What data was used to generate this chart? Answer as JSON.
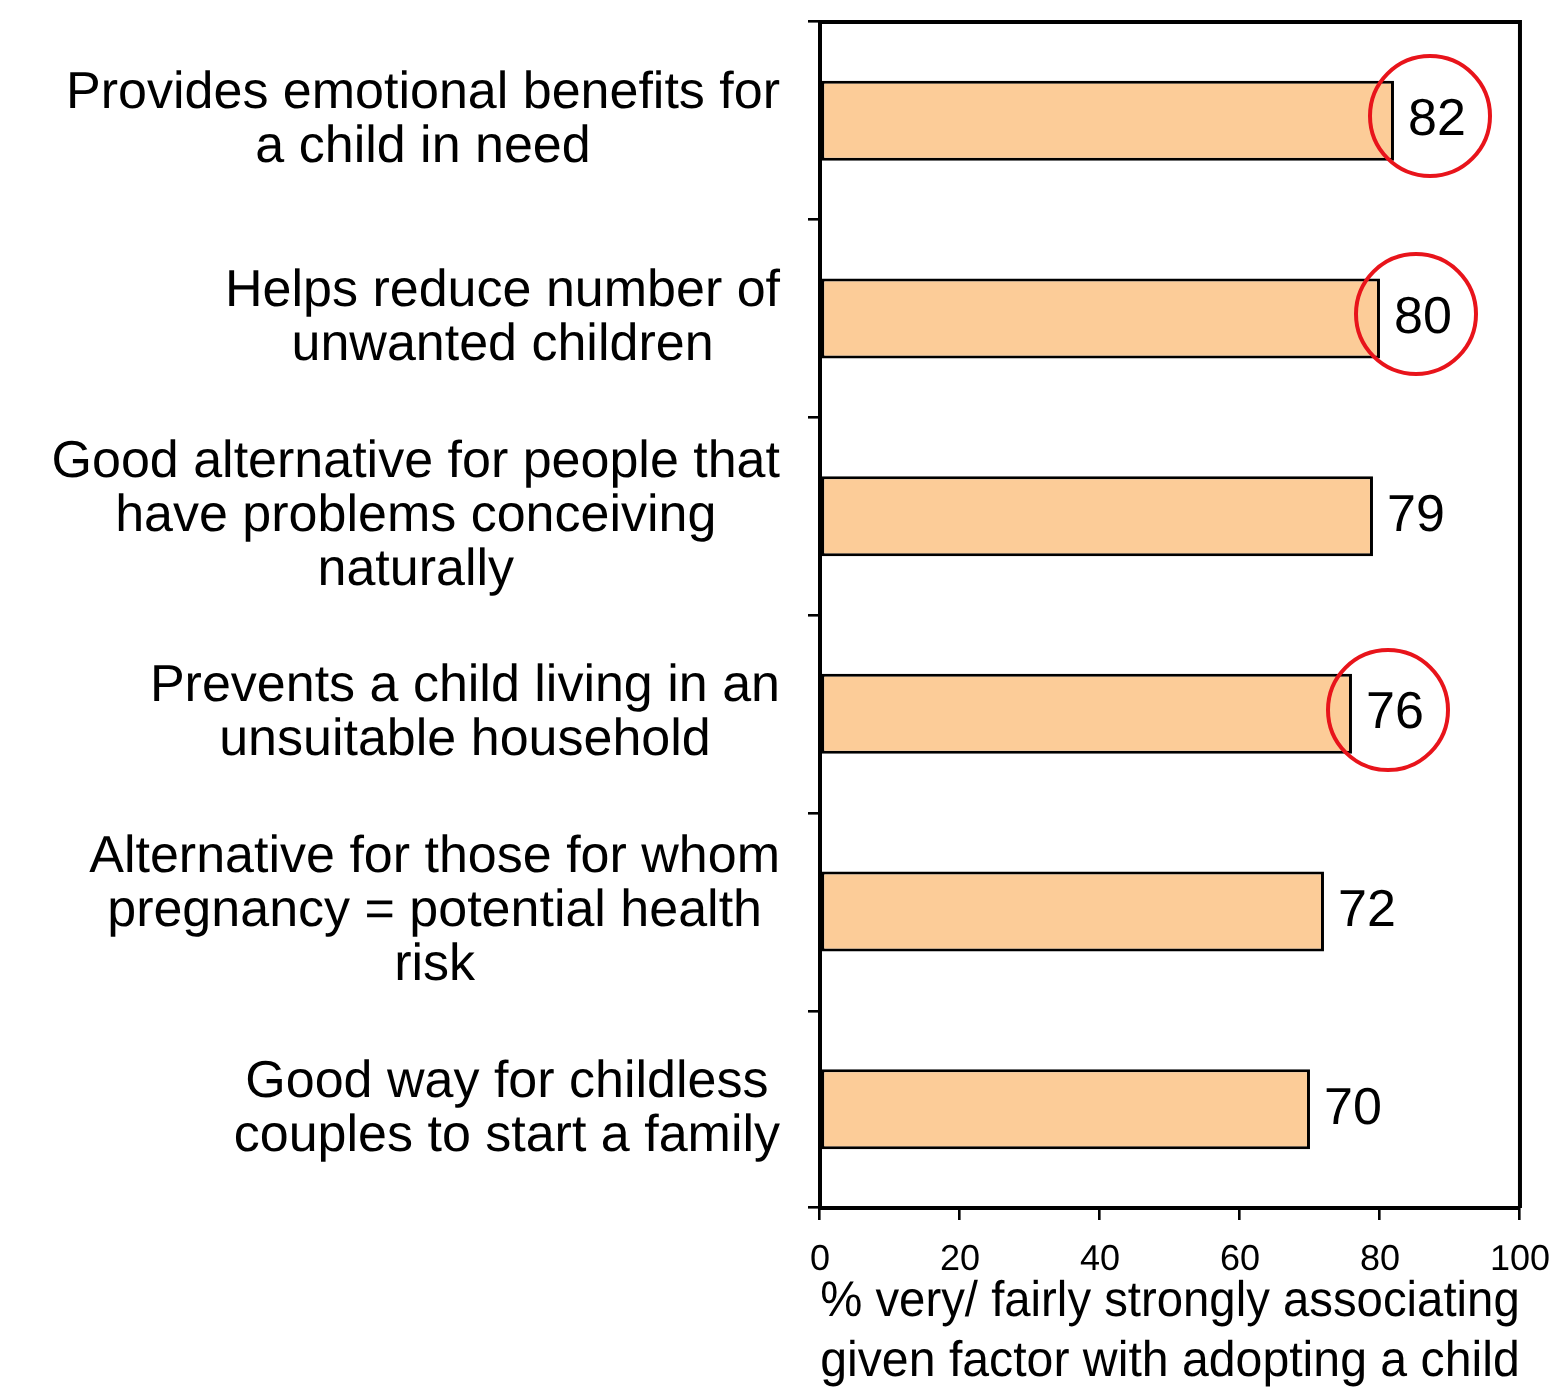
{
  "chart_data": {
    "type": "bar",
    "orientation": "horizontal",
    "categories": [
      "Provides emotional benefits for\na child in need",
      "Helps reduce number of\nunwanted children",
      "Good alternative for people that\nhave problems conceiving\nnaturally",
      "Prevents a child living in an\nunsuitable household",
      "Alternative for those for whom\npregnancy = potential health\nrisk",
      "Good way for childless\ncouples to start a family"
    ],
    "values": [
      82,
      80,
      79,
      76,
      72,
      70
    ],
    "color": "#fccc98",
    "xlim": [
      0,
      100
    ],
    "xticks": [
      0,
      20,
      40,
      60,
      80,
      100
    ],
    "xlabel": "% very/ fairly strongly associating\ngiven factor with adopting a child",
    "data_labels": true
  }
}
